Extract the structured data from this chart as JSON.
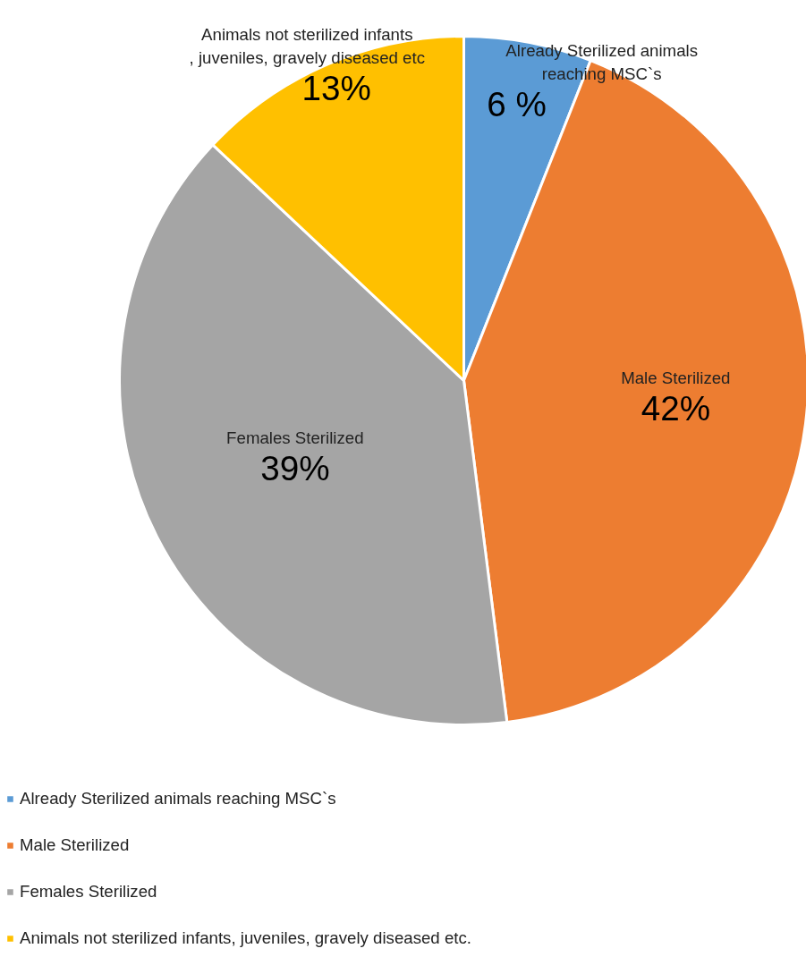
{
  "chart_data": {
    "type": "pie",
    "categories": [
      "Already Sterilized animals reaching MSC`s",
      "Male Sterilized",
      "Females Sterilized",
      "Animals not sterilized infants, juveniles, gravely diseased etc."
    ],
    "values": [
      6,
      42,
      39,
      13
    ],
    "colors": [
      "#5b9bd5",
      "#ed7d31",
      "#a5a5a5",
      "#ffc000"
    ],
    "value_labels": [
      "6 %",
      "42%",
      "39%",
      "13%"
    ],
    "annotations": [
      "Already Sterilized animals\nreaching MSC`s",
      "Male Sterilized",
      "Females Sterilized",
      "Animals not sterilized infants\n, juveniles, gravely diseased etc"
    ],
    "legend": "bottom left"
  }
}
